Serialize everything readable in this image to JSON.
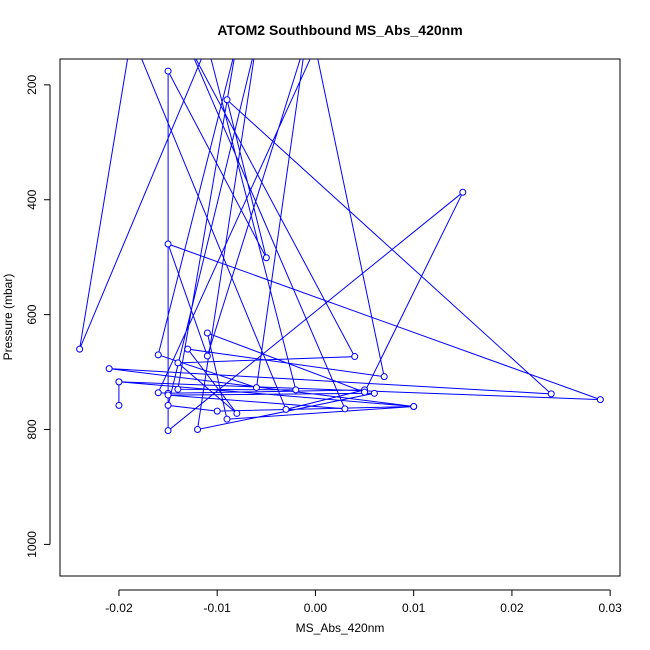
{
  "chart_data": {
    "type": "line",
    "title": "ATOM2 Southbound MS_Abs_420nm",
    "xlabel": "MS_Abs_420nm",
    "ylabel": "Pressure (mbar)",
    "xlim": [
      -0.026,
      0.031
    ],
    "ylim": [
      1055,
      155
    ],
    "y_reversed": true,
    "grid": false,
    "legend": "none",
    "x_ticks": [
      -0.02,
      -0.01,
      0.0,
      0.01,
      0.02,
      0.03
    ],
    "x_tick_labels": [
      "-0.02",
      "-0.01",
      "0.00",
      "0.01",
      "0.02",
      "0.03"
    ],
    "y_ticks": [
      200,
      400,
      600,
      800,
      1000
    ],
    "y_tick_labels": [
      "200",
      "400",
      "600",
      "800",
      "1000"
    ],
    "series": [
      {
        "color": "#0000ff",
        "marker": "open-circle",
        "segments": [
          {
            "points": [
              [
                -0.018,
                142
              ],
              [
                -0.003,
                765
              ],
              [
                0.005,
                731
              ],
              [
                -0.015,
                737
              ],
              [
                -0.016,
                736
              ],
              [
                0.0,
                135
              ],
              [
                0.007,
                708
              ],
              [
                -0.013,
                660
              ],
              [
                -0.008,
                772
              ],
              [
                -0.014,
                684
              ],
              [
                0.004,
                673
              ],
              [
                -0.013,
                128
              ],
              [
                0.003,
                764
              ],
              [
                -0.015,
                740
              ],
              [
                0.006,
                737
              ],
              [
                -0.012,
                800
              ],
              [
                -0.006,
                125
              ],
              [
                -0.015,
                758
              ],
              [
                -0.01,
                768
              ],
              [
                0.01,
                760
              ],
              [
                -0.021,
                694
              ],
              [
                0.024,
                738
              ],
              [
                -0.009,
                226
              ],
              [
                -0.005,
                501
              ],
              [
                -0.015,
                176
              ],
              [
                -0.015,
                802
              ],
              [
                0.015,
                387
              ],
              [
                0.005,
                735
              ],
              [
                -0.011,
                632
              ],
              [
                -0.009,
                782
              ],
              [
                0.01,
                760
              ],
              [
                -0.02,
                717
              ],
              [
                0.029,
                748
              ],
              [
                -0.015,
                477
              ],
              [
                -0.011,
                672
              ],
              [
                -0.001,
                125
              ],
              [
                -0.006,
                727
              ],
              [
                -0.016,
                670
              ],
              [
                -0.008,
                128
              ],
              [
                -0.014,
                730
              ],
              [
                -0.002,
                731
              ],
              [
                -0.011,
                130
              ],
              [
                -0.024,
                660
              ],
              [
                -0.019,
                142
              ]
            ]
          },
          {
            "points": [
              [
                -0.02,
                717
              ],
              [
                -0.02,
                758
              ]
            ]
          }
        ]
      }
    ]
  }
}
